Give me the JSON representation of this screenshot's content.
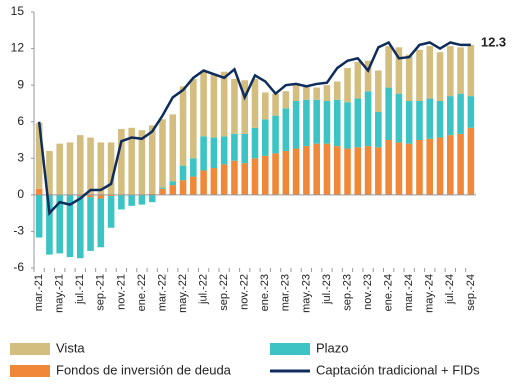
{
  "chart_data": {
    "type": "bar",
    "stacked": true,
    "categories": [
      "mar.-21",
      null,
      "may.-21",
      null,
      "jul.-21",
      null,
      "sep.-21",
      null,
      "nov.-21",
      null,
      "ene.-22",
      null,
      "mar.-22",
      null,
      "may.-22",
      null,
      "jul.-22",
      null,
      "sep.-22",
      null,
      "nov.-22",
      null,
      "ene.-23",
      null,
      "mar.-23",
      null,
      "may.-23",
      null,
      "jul.-23",
      null,
      "sep.-23",
      null,
      "nov.-23",
      null,
      "ene.-24",
      null,
      "mar.-24",
      null,
      "may.-24",
      null,
      "jul.-24",
      null,
      "sep.-24"
    ],
    "ylim": [
      -6,
      15
    ],
    "yticks": [
      15,
      12,
      9,
      6,
      3,
      0,
      -3,
      -6
    ],
    "series": [
      {
        "name": "Vista",
        "type": "bar",
        "color": "#d3bd7f",
        "values": [
          5.4,
          3.5,
          4.2,
          4.3,
          4.9,
          4.7,
          4.3,
          4.3,
          5.4,
          5.5,
          5.3,
          5.6,
          5.6,
          5.5,
          6.5,
          6.5,
          5.4,
          5.2,
          5.3,
          4.5,
          4.4,
          4.0,
          2.2,
          1.8,
          1.4,
          1.3,
          1.1,
          1.0,
          1.3,
          1.5,
          2.8,
          3.0,
          2.5,
          3.4,
          3.4,
          3.8,
          3.8,
          4.2,
          4.3,
          4.0,
          4.1,
          3.8,
          4.2
        ]
      },
      {
        "name": "Plazo",
        "type": "bar",
        "color": "#3cc4c4",
        "values": [
          -3.5,
          -4.9,
          -4.8,
          -5.1,
          -5.1,
          -4.4,
          -4.0,
          -2.6,
          -1.2,
          -0.9,
          -0.8,
          -0.6,
          0.1,
          0.3,
          1.2,
          1.5,
          2.8,
          2.5,
          2.3,
          2.2,
          2.4,
          2.5,
          3.0,
          3.1,
          3.5,
          3.9,
          3.8,
          3.6,
          3.5,
          3.8,
          3.8,
          4.0,
          4.5,
          2.9,
          4.3,
          4.0,
          3.5,
          3.2,
          3.3,
          3.0,
          3.2,
          3.3,
          2.6
        ]
      },
      {
        "name": "Fondos de inversión de deuda",
        "type": "bar",
        "color": "#f0883a",
        "values": [
          0.5,
          0.1,
          0.0,
          0.0,
          -0.1,
          -0.2,
          -0.3,
          -0.1,
          0.0,
          0.0,
          0.0,
          0.1,
          0.5,
          0.8,
          1.2,
          1.5,
          2.0,
          2.2,
          2.5,
          2.8,
          2.6,
          3.0,
          3.2,
          3.4,
          3.6,
          3.8,
          4.0,
          4.2,
          4.2,
          4.0,
          3.8,
          3.9,
          4.0,
          3.9,
          4.5,
          4.3,
          4.2,
          4.5,
          4.6,
          4.7,
          4.9,
          5.0,
          5.5
        ]
      },
      {
        "name": "Captación tradicional + FIDs",
        "type": "line",
        "color": "#0f2d5c",
        "values": [
          6.0,
          -1.5,
          -0.6,
          -0.8,
          -0.3,
          0.4,
          0.4,
          0.9,
          4.4,
          4.7,
          4.6,
          5.2,
          6.5,
          8.0,
          8.6,
          9.6,
          10.2,
          9.9,
          9.6,
          10.3,
          8.0,
          9.8,
          9.3,
          8.3,
          9.0,
          9.1,
          8.9,
          9.1,
          9.2,
          10.4,
          11.0,
          11.2,
          10.2,
          12.1,
          12.5,
          11.2,
          11.3,
          12.3,
          12.5,
          12.0,
          12.5,
          12.3,
          12.3
        ]
      }
    ]
  }
}
